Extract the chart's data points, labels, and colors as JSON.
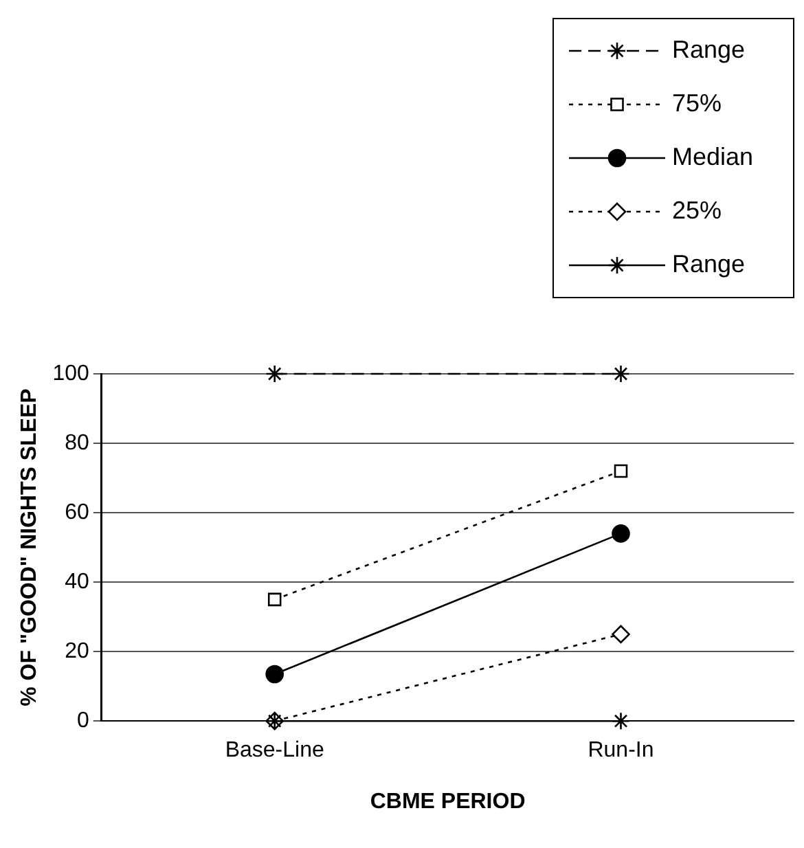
{
  "chart_data": {
    "type": "line",
    "xlabel": "CBME PERIOD",
    "ylabel": "% OF \"GOOD\" NIGHTS SLEEP",
    "categories": [
      "Base-Line",
      "Run-In"
    ],
    "series": [
      {
        "name": "Range",
        "color": "#000000",
        "values": [
          100,
          100
        ],
        "line_style": "dashed",
        "marker": "cross"
      },
      {
        "name": "75%",
        "color": "#000000",
        "values": [
          35,
          72
        ],
        "line_style": "dotted",
        "marker": "square"
      },
      {
        "name": "Median",
        "color": "#000000",
        "values": [
          13.5,
          54
        ],
        "line_style": "solid",
        "marker": "circle"
      },
      {
        "name": "25%",
        "color": "#000000",
        "values": [
          0,
          25
        ],
        "line_style": "dotted",
        "marker": "diamond"
      },
      {
        "name": "Range",
        "color": "#000000",
        "values": [
          0,
          0
        ],
        "line_style": "solid",
        "marker": "cross"
      }
    ],
    "ylim": [
      0,
      100
    ],
    "yticks": [
      0,
      20,
      40,
      60,
      80,
      100
    ],
    "grid": "y",
    "legend": "top right"
  }
}
